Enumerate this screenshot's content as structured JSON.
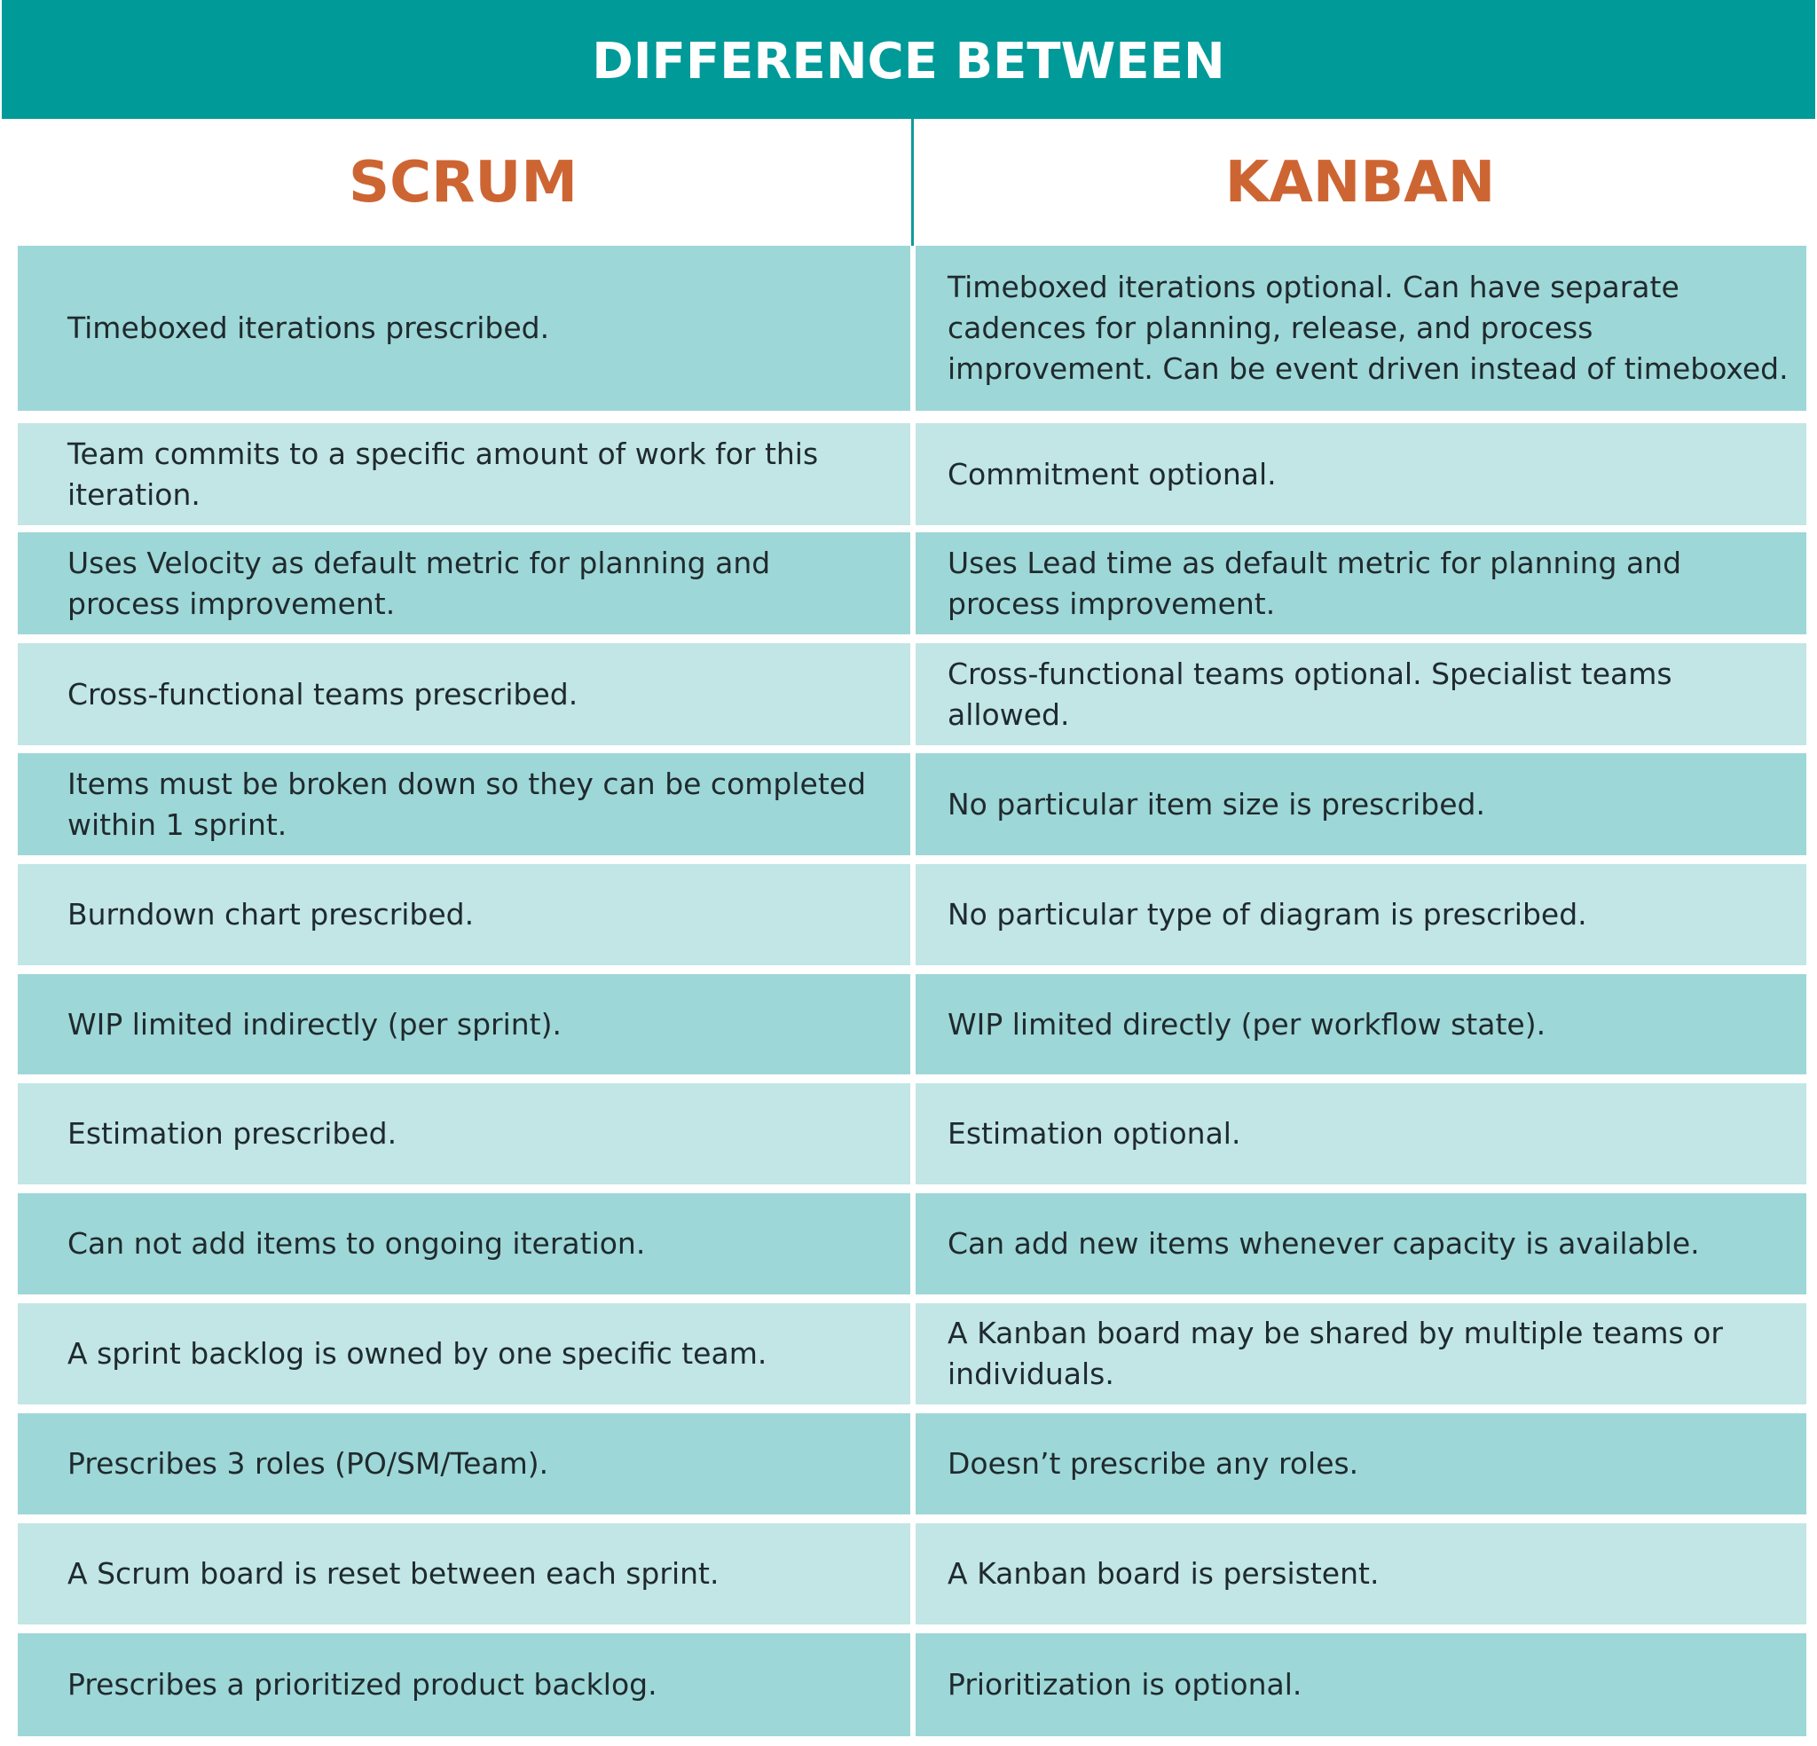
{
  "header": {
    "title": "DIFFERENCE BETWEEN"
  },
  "columns": {
    "left": "SCRUM",
    "right": "KANBAN"
  },
  "rows": [
    {
      "scrum": "Timeboxed iterations prescribed.",
      "kanban": "Timeboxed iterations optional. Can have separate cadences for planning, release, and process improvement. Can be event driven instead of timeboxed."
    },
    {
      "scrum": "Team commits to a specific amount of work for this iteration.",
      "kanban": "Commitment optional."
    },
    {
      "scrum": "Uses Velocity as default metric for planning and process improvement.",
      "kanban": "Uses Lead time as default metric for planning and process improvement."
    },
    {
      "scrum": "Cross-functional teams prescribed.",
      "kanban": "Cross-functional teams optional. Specialist teams allowed."
    },
    {
      "scrum": "Items must be broken down so they can be completed within 1 sprint.",
      "kanban": "No particular item size is prescribed."
    },
    {
      "scrum": "Burndown chart prescribed.",
      "kanban": "No particular type of diagram is prescribed."
    },
    {
      "scrum": "WIP limited indirectly (per sprint).",
      "kanban": "WIP limited directly (per workflow state)."
    },
    {
      "scrum": "Estimation prescribed.",
      "kanban": "Estimation optional."
    },
    {
      "scrum": "Can not add items to ongoing iteration.",
      "kanban": "Can add new items whenever capacity is available."
    },
    {
      "scrum": "A sprint backlog is owned by one specific team.",
      "kanban": "A Kanban board may be shared by multiple teams or individuals."
    },
    {
      "scrum": "Prescribes 3 roles (PO/SM/Team).",
      "kanban": "Doesn’t prescribe any roles."
    },
    {
      "scrum": "A Scrum board is reset between each sprint.",
      "kanban": "A Kanban board is persistent."
    },
    {
      "scrum": "Prescribes a prioritized product backlog.",
      "kanban": "Prioritization is optional."
    }
  ],
  "colors": {
    "header_bg": "#009a99",
    "column_heading": "#cd6533",
    "row_dark": "#9ed7d7",
    "row_light": "#c1e6e5"
  }
}
